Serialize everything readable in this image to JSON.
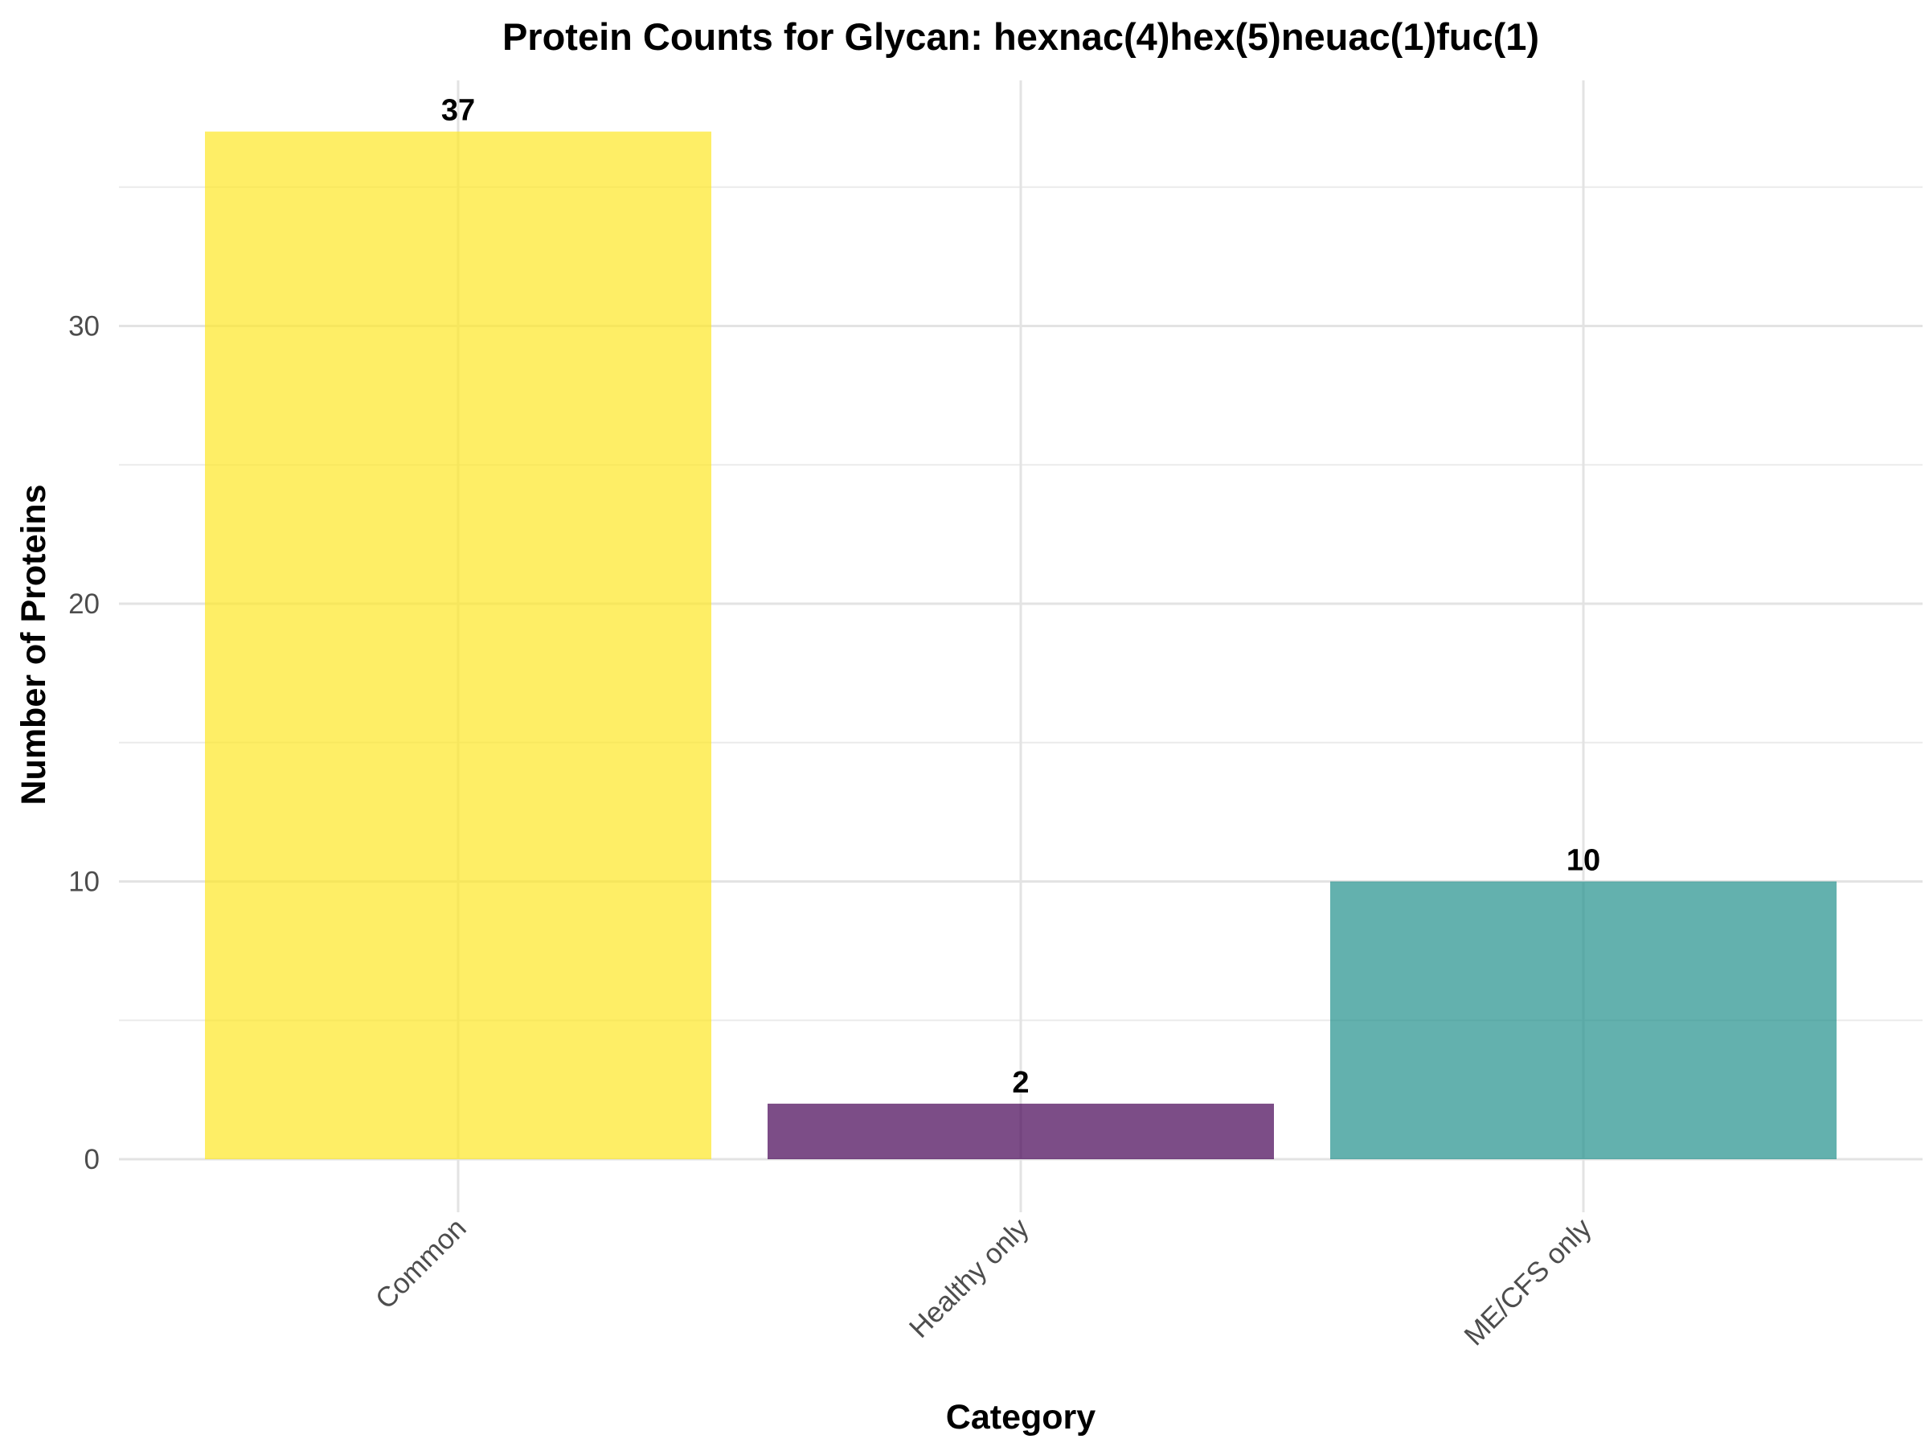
{
  "chart_data": {
    "type": "bar",
    "title": "Protein Counts for Glycan: hexnac(4)hex(5)neuac(1)fuc(1)",
    "xlabel": "Category",
    "ylabel": "Number of Proteins",
    "categories": [
      "Common",
      "Healthy only",
      "ME/CFS only"
    ],
    "values": [
      37,
      2,
      10
    ],
    "data_labels": [
      "37",
      "2",
      "10"
    ],
    "colors": [
      "#FDE725",
      "#440154",
      "#21908C"
    ],
    "bar_opacity": 0.7,
    "ylim": [
      0,
      39
    ],
    "yticks": [
      0,
      10,
      20,
      30
    ],
    "ytick_labels": [
      "0",
      "10",
      "20",
      "30"
    ],
    "grid": true,
    "legend": "none"
  }
}
